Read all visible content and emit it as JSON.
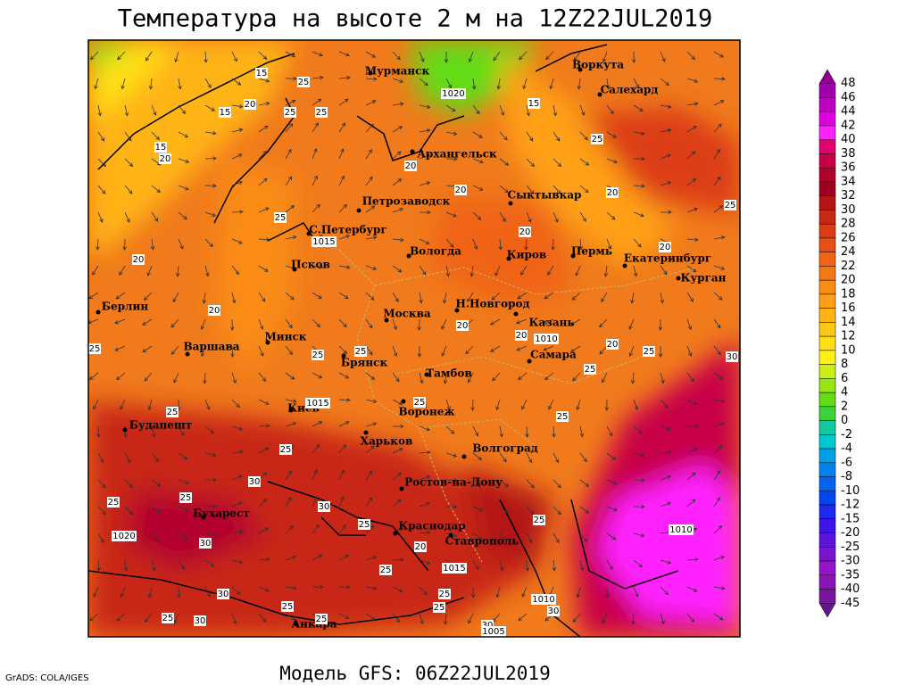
{
  "header": {
    "title": "Температура на высоте 2 м на 12Z22JUL2019"
  },
  "footer": {
    "model": "Модель GFS: 06Z22JUL2019",
    "credit": "GrADS: COLA/IGES"
  },
  "cities": [
    "Мурманск",
    "Воркута",
    "Салехард",
    "Архангельск",
    "Петрозаводск",
    "Сыктывкар",
    "С.Петербург",
    "Вологда",
    "Киров",
    "Пермь",
    "Екатеринбург",
    "Курган",
    "Псков",
    "Берлин",
    "Н.Новгород",
    "Москва",
    "Казань",
    "Варшава",
    "Минск",
    "Самара",
    "Брянск",
    "Тамбов",
    "Киев",
    "Воронеж",
    "Будапешт",
    "Харьков",
    "Волгоград",
    "Ростов-на-Дону",
    "Бухарест",
    "Краснодар",
    "Ставрополь",
    "Анкара"
  ],
  "isotherm_labels": [
    15,
    25,
    15,
    20,
    25,
    25,
    15,
    20,
    20,
    20,
    15,
    25,
    20,
    25,
    20,
    20,
    20,
    25,
    20,
    20,
    20,
    20,
    25,
    25,
    25,
    25,
    25,
    30,
    25,
    25,
    25,
    25,
    30,
    25,
    25,
    30,
    30,
    25,
    20,
    25,
    25,
    25,
    25,
    25,
    30,
    25,
    30,
    25,
    30,
    30
  ],
  "isobar_labels": [
    1020,
    1015,
    1015,
    1010,
    1010,
    1020,
    1015,
    1010,
    1005
  ],
  "legend": {
    "labels": [
      "48",
      "46",
      "44",
      "42",
      "40",
      "38",
      "36",
      "34",
      "32",
      "30",
      "28",
      "26",
      "24",
      "22",
      "20",
      "18",
      "16",
      "14",
      "12",
      "10",
      "8",
      "6",
      "4",
      "2",
      "0",
      "-2",
      "-4",
      "-6",
      "-8",
      "-10",
      "-12",
      "-15",
      "-20",
      "-25",
      "-30",
      "-35",
      "-40",
      "-45"
    ],
    "colors": [
      "#8b0090",
      "#a000aa",
      "#c000c0",
      "#e000e0",
      "#ff20ff",
      "#e6006e",
      "#c80046",
      "#b4002d",
      "#a00020",
      "#b41414",
      "#c82814",
      "#dc3c14",
      "#e65014",
      "#f06414",
      "#f57814",
      "#fa8c14",
      "#ffa014",
      "#ffb414",
      "#ffc814",
      "#ffe014",
      "#fff014",
      "#c8f014",
      "#96e614",
      "#64dc14",
      "#3cd23c",
      "#14c8a0",
      "#00c8d2",
      "#00a0e6",
      "#0082f0",
      "#0064f0",
      "#0046f0",
      "#1e28f0",
      "#3c14e6",
      "#5a14dc",
      "#7814d2",
      "#9614c8",
      "#8c14b4",
      "#7814a0",
      "#64148c"
    ]
  }
}
